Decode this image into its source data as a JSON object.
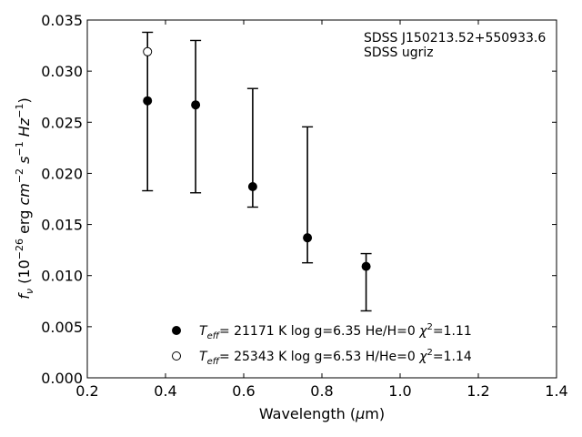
{
  "chart_data": {
    "type": "scatter",
    "title": "",
    "xlabel": "Wavelength (μm)",
    "ylabel": "f_ν (10^-26 erg cm^-2 s^-1 Hz^-1)",
    "xlim": [
      0.2,
      1.4
    ],
    "ylim": [
      0.0,
      0.035
    ],
    "x_ticks": [
      0.2,
      0.4,
      0.6,
      0.8,
      1.0,
      1.2,
      1.4
    ],
    "x_tick_labels": [
      "0.2",
      "0.4",
      "0.6",
      "0.8",
      "1.0",
      "1.2",
      "1.4"
    ],
    "y_ticks": [
      0.0,
      0.005,
      0.01,
      0.015,
      0.02,
      0.025,
      0.03,
      0.035
    ],
    "y_tick_labels": [
      "0.000",
      "0.005",
      "0.010",
      "0.015",
      "0.020",
      "0.025",
      "0.030",
      "0.035"
    ],
    "grid": false,
    "legend_position": "bottom-center",
    "annotations": [
      "SDSS J150213.52+550933.6",
      "SDSS ugriz"
    ],
    "observed": {
      "x": [
        0.354,
        0.477,
        0.623,
        0.763,
        0.913
      ],
      "y": [
        0.02605,
        0.02555,
        0.0225,
        0.0179,
        0.00935
      ],
      "yerr": [
        0.00775,
        0.00745,
        0.0058,
        0.00665,
        0.0028
      ]
    },
    "series": [
      {
        "name": "T_eff= 21171 K  log g=6.35  He/H=0  χ²=1.11",
        "marker": "filled-circle",
        "color": "#000000",
        "x": [
          0.354,
          0.477,
          0.623,
          0.763,
          0.913
        ],
        "y": [
          0.0271,
          0.0267,
          0.0187,
          0.0137,
          0.0109
        ]
      },
      {
        "name": "T_eff= 25343 K  log g=6.53  H/He=0  χ²=1.14",
        "marker": "open-circle",
        "color": "#000000",
        "x": [
          0.354
        ],
        "y": [
          0.0319
        ]
      }
    ]
  }
}
